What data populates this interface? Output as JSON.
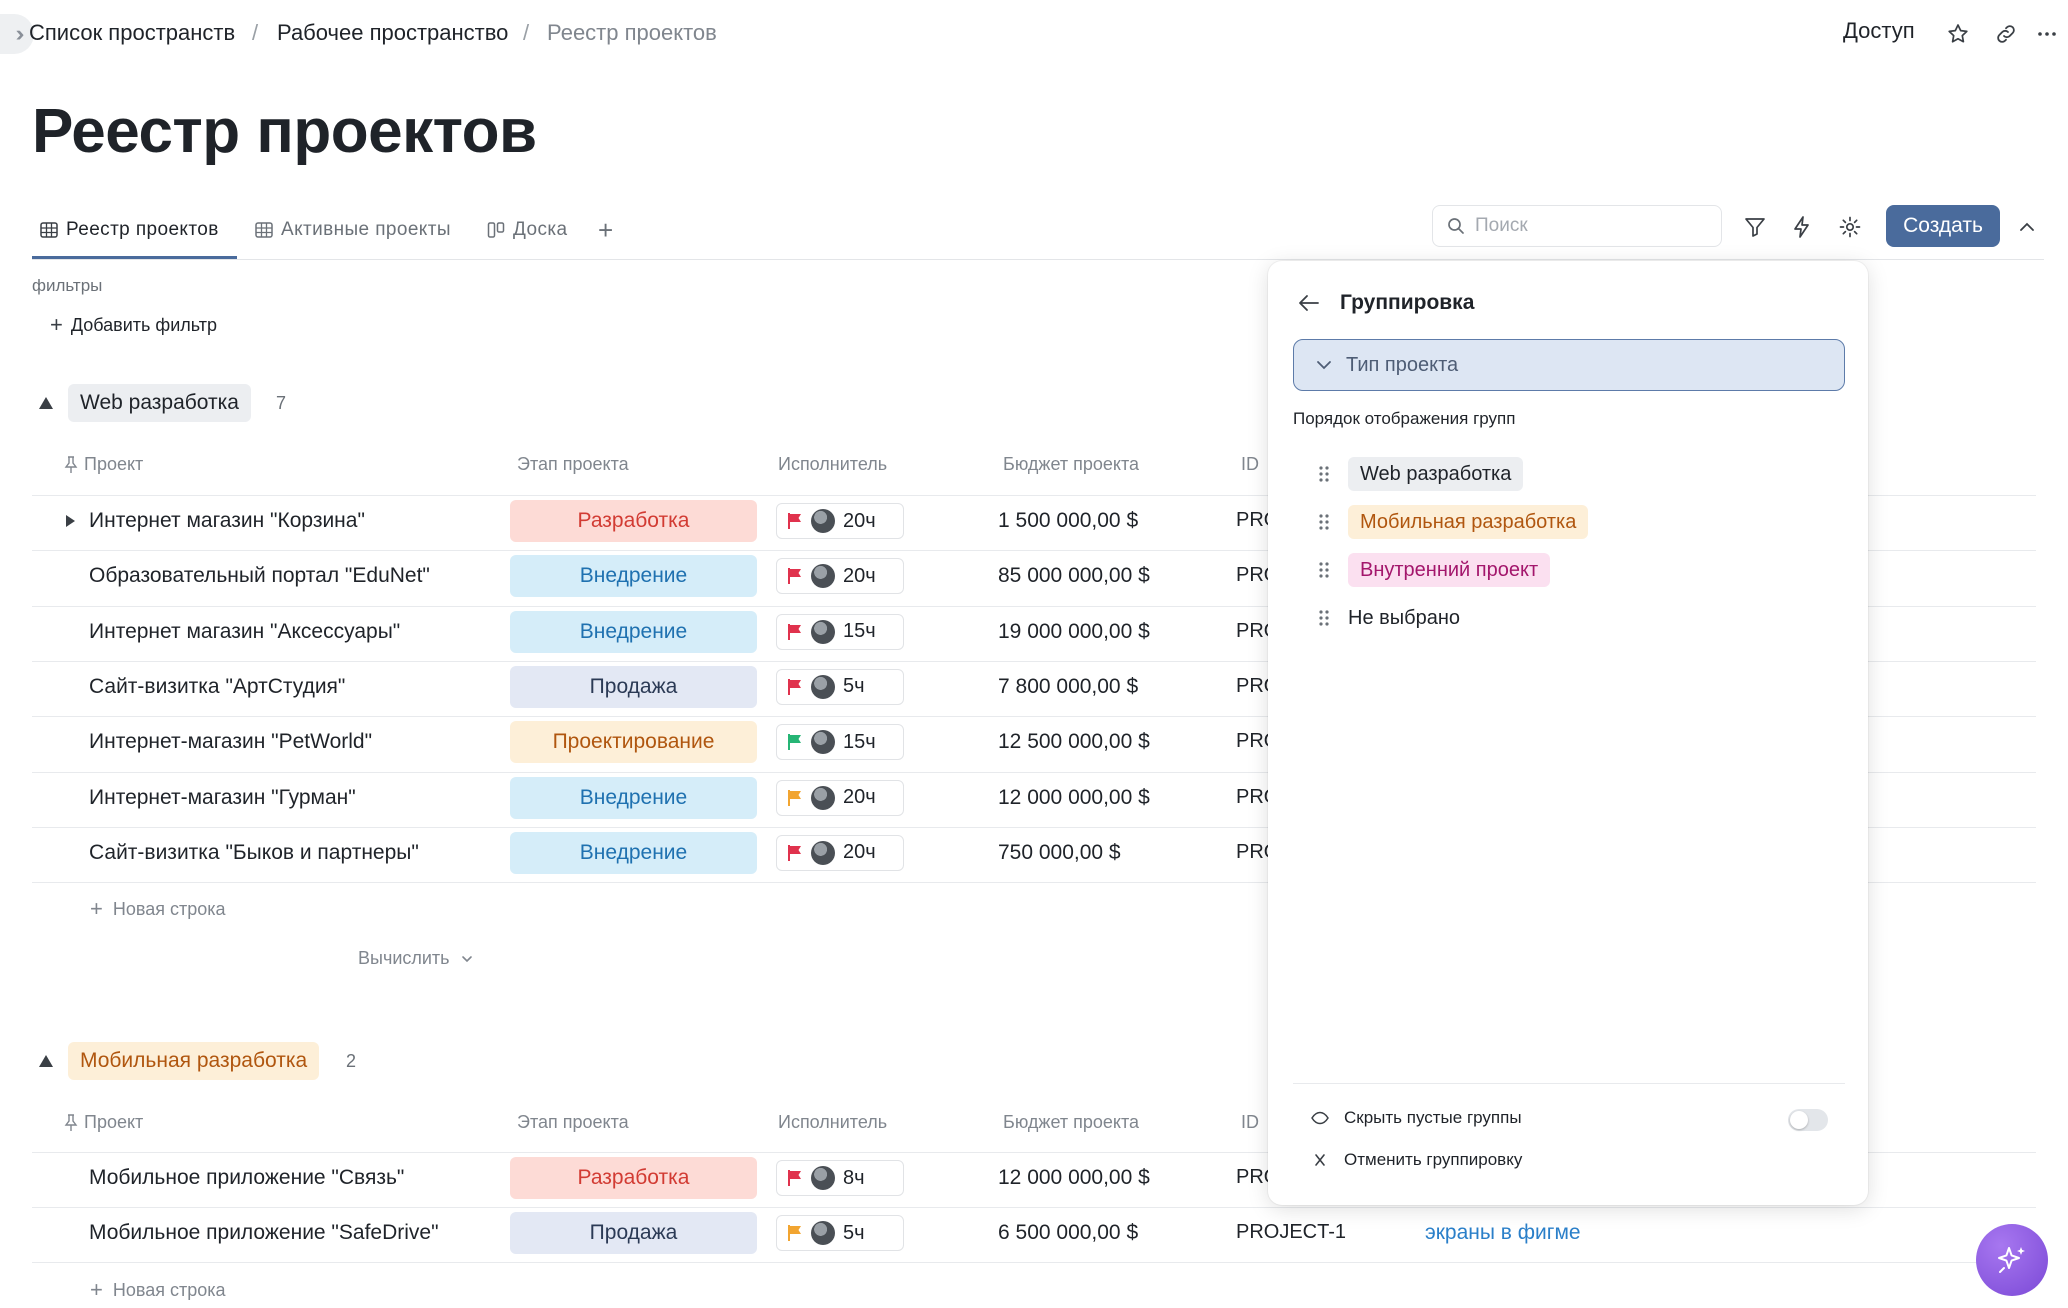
{
  "breadcrumb": {
    "spaces": "Список пространств",
    "workspace": "Рабочее пространство",
    "current": "Реестр проектов",
    "separator": "/"
  },
  "header_actions": {
    "access": "Доступ"
  },
  "page_title": "Реестр проектов",
  "tabs": [
    {
      "label": "Реестр проектов",
      "icon": "table-icon",
      "active": true
    },
    {
      "label": "Активные проекты",
      "icon": "table-icon",
      "active": false
    },
    {
      "label": "Доска",
      "icon": "board-icon",
      "active": false
    }
  ],
  "toolbar": {
    "search_placeholder": "Поиск",
    "create_label": "Создать"
  },
  "filters": {
    "label": "фильтры",
    "add_label": "Добавить фильтр"
  },
  "columns": {
    "project": "Проект",
    "stage": "Этап проекта",
    "assignee": "Исполнитель",
    "budget": "Бюджет проекта",
    "id": "ID"
  },
  "colors": {
    "accent": "#4a6b9c",
    "stage_development": "#fddbd6",
    "stage_implementation": "#d5edf9",
    "stage_sale": "#e3e8f4",
    "stage_design": "#fdefd8",
    "flag_red": "#e0324d",
    "flag_green": "#26b575",
    "flag_orange": "#f2a531"
  },
  "groups": [
    {
      "name": "Web разработка",
      "count": "7",
      "rows": [
        {
          "name": "Интернет магазин \"Корзина\"",
          "stage": "Разработка",
          "flag": "red",
          "hours": "20ч",
          "budget": "1 500 000,00 $",
          "id": "PRO"
        },
        {
          "name": "Образовательный портал \"EduNet\"",
          "stage": "Внедрение",
          "flag": "red",
          "hours": "20ч",
          "budget": "85 000 000,00 $",
          "id": "PRO"
        },
        {
          "name": "Интернет магазин \"Аксессуары\"",
          "stage": "Внедрение",
          "flag": "red",
          "hours": "15ч",
          "budget": "19 000 000,00 $",
          "id": "PRO"
        },
        {
          "name": "Сайт-визитка \"АртСтудия\"",
          "stage": "Продажа",
          "flag": "red",
          "hours": "5ч",
          "budget": "7 800 000,00 $",
          "id": "PRO"
        },
        {
          "name": "Интернет-магазин \"PetWorld\"",
          "stage": "Проектирование",
          "flag": "green",
          "hours": "15ч",
          "budget": "12 500 000,00 $",
          "id": "PRO"
        },
        {
          "name": "Интернет-магазин \"Гурман\"",
          "stage": "Внедрение",
          "flag": "orange",
          "hours": "20ч",
          "budget": "12 000 000,00 $",
          "id": "PRO"
        },
        {
          "name": "Сайт-визитка \"Быков и партнеры\"",
          "stage": "Внедрение",
          "flag": "red",
          "hours": "20ч",
          "budget": "750 000,00 $",
          "id": "PRO"
        }
      ],
      "new_row": "Новая строка",
      "calculate": "Вычислить"
    },
    {
      "name": "Мобильная разработка",
      "count": "2",
      "rows": [
        {
          "name": "Мобильное приложение \"Связь\"",
          "stage": "Разработка",
          "flag": "red",
          "hours": "8ч",
          "budget": "12 000 000,00 $",
          "id": "PRO"
        },
        {
          "name": "Мобильное приложение \"SafeDrive\"",
          "stage": "Продажа",
          "flag": "orange",
          "hours": "5ч",
          "budget": "6 500 000,00 $",
          "id": "PROJECT-1",
          "link": "экраны в фигме"
        }
      ],
      "new_row": "Новая строка"
    }
  ],
  "grouping_panel": {
    "title": "Группировка",
    "group_by": "Тип проекта",
    "order_label": "Порядок отображения групп",
    "order": [
      "Web разработка",
      "Мобильная разработка",
      "Внутренний проект",
      "Не выбрано"
    ],
    "hide_empty": "Скрыть пустые группы",
    "hide_empty_enabled": false,
    "cancel": "Отменить группировку"
  }
}
